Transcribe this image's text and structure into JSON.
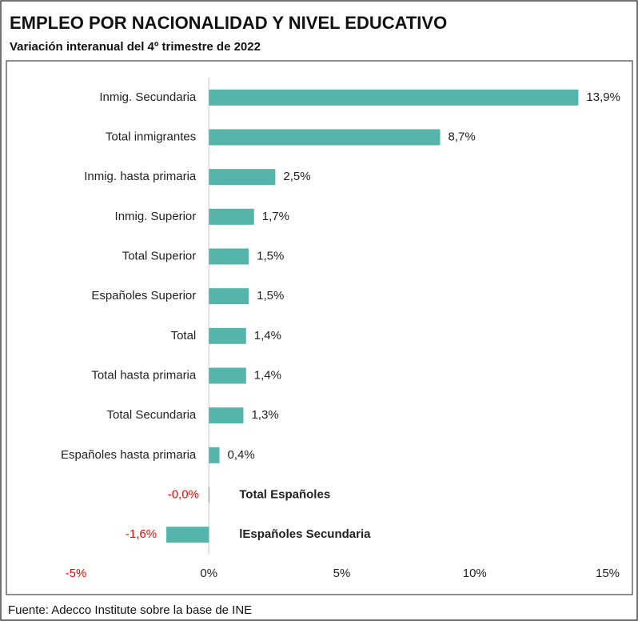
{
  "chart_data": {
    "type": "bar",
    "orientation": "horizontal",
    "title": "EMPLEO POR NACIONALIDAD Y NIVEL EDUCATIVO",
    "subtitle": "Variación interanual del 4º trimestre de 2022",
    "source": "Fuente: Adecco Institute sobre la base de INE",
    "categories": [
      "Inmig. Secundaria",
      "Total inmigrantes",
      "Inmig. hasta primaria",
      "Inmig. Superior",
      "Total Superior",
      "Españoles Superior",
      "Total",
      "Total hasta primaria",
      "Total Secundaria",
      "Españoles hasta primaria",
      "Total Españoles",
      "lEspañoles Secundaria"
    ],
    "values": [
      13.9,
      8.7,
      2.5,
      1.7,
      1.5,
      1.5,
      1.4,
      1.4,
      1.3,
      0.4,
      -0.01,
      -1.6
    ],
    "value_labels": [
      "13,9%",
      "8,7%",
      "2,5%",
      "1,7%",
      "1,5%",
      "1,5%",
      "1,4%",
      "1,4%",
      "1,3%",
      "0,4%",
      "-0,0%",
      "-1,6%"
    ],
    "color": "#55b5aa",
    "negative_label_color": "#ff0000",
    "xlim": [
      -5,
      15
    ],
    "xticks": [
      {
        "value": -5,
        "label": "-5%"
      },
      {
        "value": 0,
        "label": "0%"
      },
      {
        "value": 5,
        "label": "5%"
      },
      {
        "value": 10,
        "label": "10%"
      },
      {
        "value": 15,
        "label": "15%"
      }
    ],
    "grid": false
  }
}
